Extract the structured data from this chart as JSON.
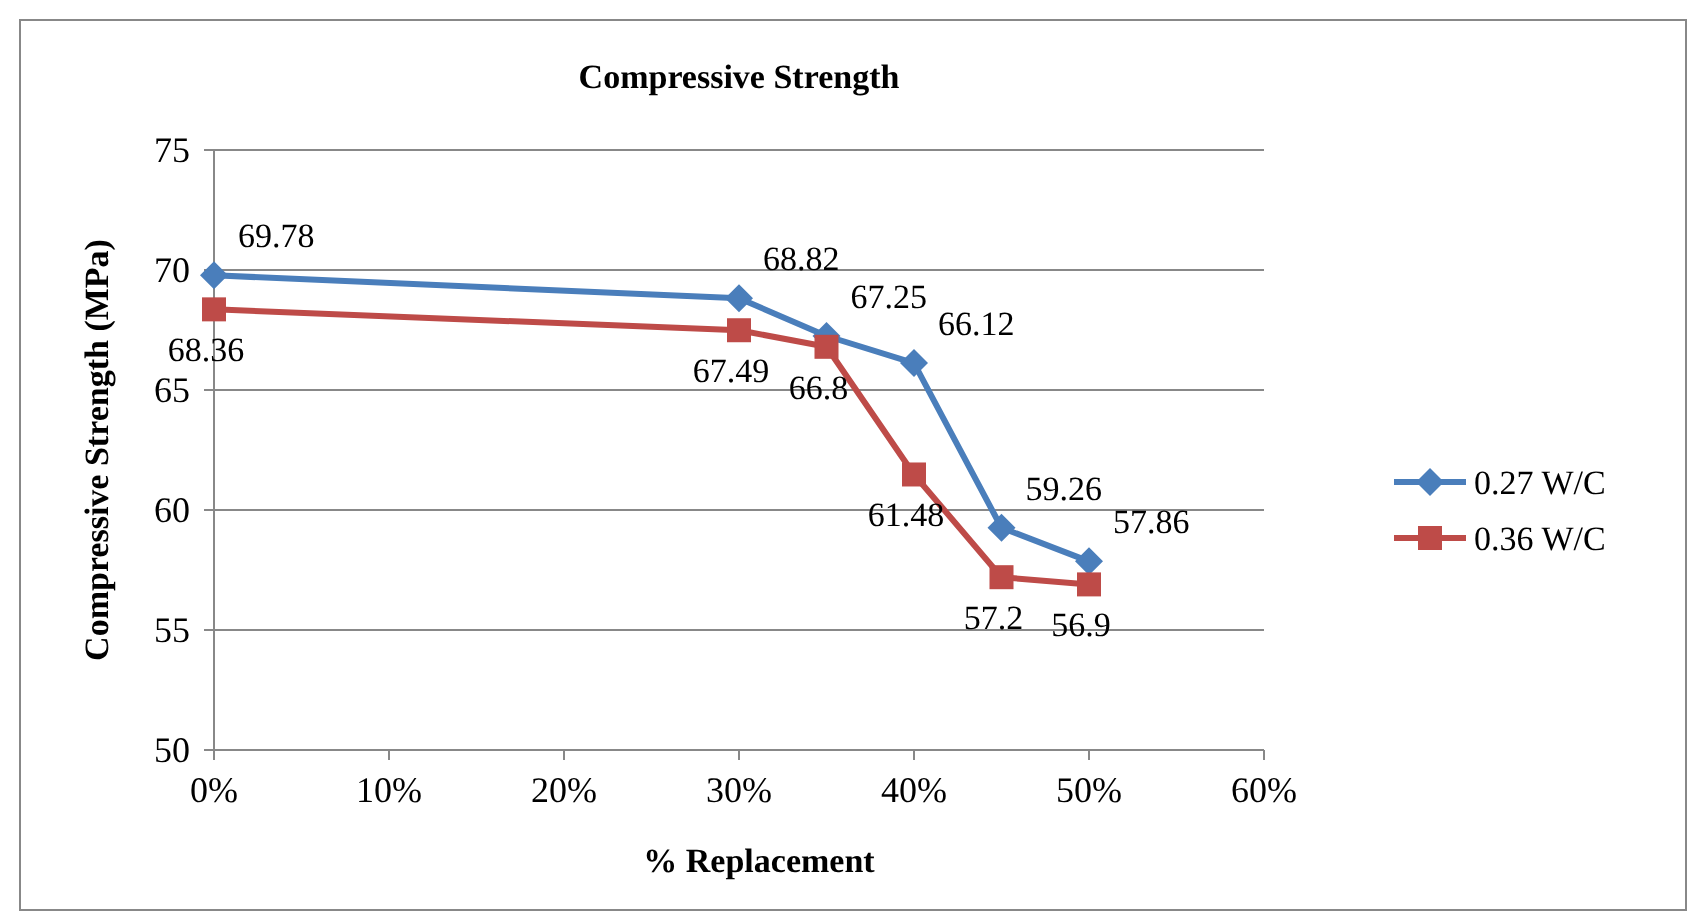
{
  "chart_data": {
    "type": "line",
    "title": "Compressive Strength",
    "xlabel": "% Replacement",
    "ylabel": "Compressive Strength (MPa)",
    "x": [
      0,
      30,
      35,
      40,
      45,
      50
    ],
    "series": [
      {
        "name": "0.27 W/C",
        "color": "#4a7ebb",
        "marker": "diamond",
        "values": [
          69.78,
          68.82,
          67.25,
          66.12,
          59.26,
          57.86
        ]
      },
      {
        "name": "0.36 W/C",
        "color": "#be4b48",
        "marker": "square",
        "values": [
          68.36,
          67.49,
          66.8,
          61.48,
          57.2,
          56.9
        ]
      }
    ],
    "xlim": [
      0,
      60
    ],
    "xticks": [
      {
        "value": 0,
        "label": "0%"
      },
      {
        "value": 10,
        "label": "10%"
      },
      {
        "value": 20,
        "label": "20%"
      },
      {
        "value": 30,
        "label": "30%"
      },
      {
        "value": 40,
        "label": "40%"
      },
      {
        "value": 50,
        "label": "50%"
      },
      {
        "value": 60,
        "label": "60%"
      }
    ],
    "ylim": [
      50,
      75
    ],
    "yticks": [
      50,
      55,
      60,
      65,
      70,
      75
    ],
    "grid": "y",
    "legend": "right",
    "data_labels": true,
    "line_style": "solid"
  }
}
